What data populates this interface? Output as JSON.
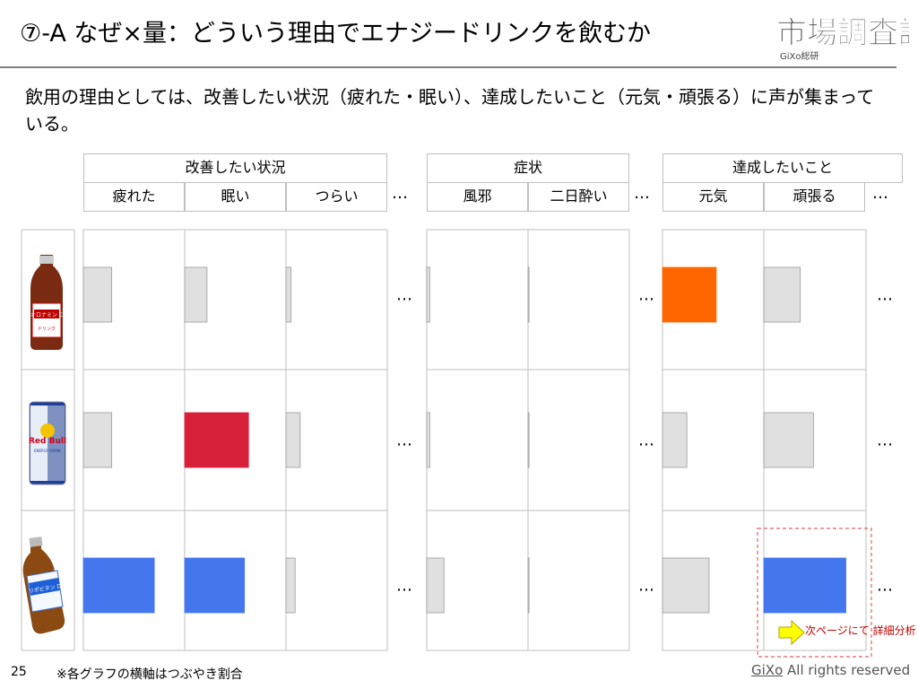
{
  "title": "⑦-A なぜ×量：どういう理由でエナジードリンクを飲むか",
  "logo": {
    "main": "市場調査課",
    "sub": "GiXo総研"
  },
  "lead": "飲用の理由としては、改善したい状況（疲れた・眠い）、達成したいこと（元気・頑張る）に声が集まっている。",
  "ellipsis": "…",
  "products": [
    {
      "name": "オロナミンC",
      "bottle_label": "オロナミン C",
      "bottle_sub": "ドリンク"
    },
    {
      "name": "Red Bull",
      "bottle_label": "Red Bull",
      "bottle_sub": "ENERGY DRINK"
    },
    {
      "name": "リポビタンD",
      "bottle_label": "リポビタン D",
      "bottle_sub": ""
    }
  ],
  "footer": {
    "page": "25",
    "note": "※各グラフの横軸はつぶやき割合",
    "brand": "GiXo",
    "rights": " All rights reserved"
  },
  "callout": {
    "text": "次ページにて 詳細分析"
  },
  "colors": {
    "gray": "#e0e0e0",
    "orange": "#ff6600",
    "red": "#d71f3a",
    "blue": "#4477ee",
    "grid": "#bfbfbf"
  },
  "chart_data": {
    "type": "bar",
    "note": "※各グラフの横軸はつぶやき割合",
    "groups": [
      {
        "label": "改善したい状況",
        "categories": [
          "疲れた",
          "眠い",
          "つらい"
        ]
      },
      {
        "label": "症状",
        "categories": [
          "風邪",
          "二日酔い"
        ]
      },
      {
        "label": "達成したいこと",
        "categories": [
          "元気",
          "頑張る"
        ]
      }
    ],
    "categories": [
      "疲れた",
      "眠い",
      "つらい",
      "風邪",
      "二日酔い",
      "元気",
      "頑張る"
    ],
    "xlim": [
      0,
      1
    ],
    "series": [
      {
        "name": "オロナミンC",
        "values": [
          0.28,
          0.22,
          0.05,
          0.03,
          0.01,
          0.53,
          0.36
        ],
        "highlight": [
          5
        ],
        "highlight_color": "orange"
      },
      {
        "name": "Red Bull",
        "values": [
          0.28,
          0.63,
          0.14,
          0.03,
          0.01,
          0.24,
          0.49
        ],
        "highlight": [
          1
        ],
        "highlight_color": "red"
      },
      {
        "name": "リポビタンD",
        "values": [
          0.7,
          0.59,
          0.09,
          0.17,
          0.01,
          0.46,
          0.81
        ],
        "highlight": [
          0,
          1,
          6
        ],
        "highlight_color": "blue"
      }
    ]
  }
}
